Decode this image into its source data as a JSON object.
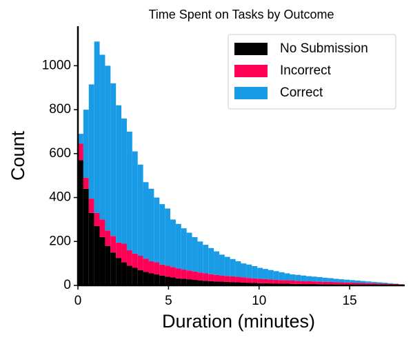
{
  "chart_data": {
    "type": "histogram",
    "title": "Time Spent on Tasks by Outcome",
    "xlabel": "Duration (minutes)",
    "ylabel": "Count",
    "bins": [
      0,
      0.3,
      0.6,
      0.9,
      1.2,
      1.5,
      1.8,
      2.1,
      2.4,
      2.7,
      3,
      3.3,
      3.6,
      3.9,
      4.2,
      4.5,
      4.8,
      5.1,
      5.4,
      5.7,
      6,
      6.3,
      6.6,
      6.9,
      7.2,
      7.5,
      7.8,
      8.1,
      8.4,
      8.7,
      9,
      9.3,
      9.6,
      9.9,
      10.2,
      10.5,
      10.8,
      11.1,
      11.4,
      11.7,
      12,
      12.3,
      12.6,
      12.9,
      13.2,
      13.5,
      13.8,
      14.1,
      14.4,
      14.7,
      15,
      15.3,
      15.6,
      15.9,
      16.2,
      16.5,
      16.8,
      17.1,
      17.4,
      17.7,
      18
    ],
    "stacked": true,
    "series": [
      {
        "name": "No Submission",
        "color": "#000000",
        "values": [
          570,
          440,
          330,
          270,
          220,
          180,
          150,
          125,
          105,
          90,
          80,
          70,
          62,
          55,
          50,
          45,
          40,
          36,
          32,
          30,
          28,
          25,
          23,
          21,
          19,
          18,
          17,
          16,
          15,
          14,
          13,
          12,
          11,
          10,
          10,
          9,
          9,
          8,
          8,
          7,
          7,
          6,
          6,
          6,
          5,
          5,
          5,
          4,
          4,
          4,
          4,
          3,
          3,
          3,
          3,
          2,
          2,
          2,
          2,
          1
        ]
      },
      {
        "name": "Incorrect",
        "color": "#ff0055",
        "values": [
          75,
          50,
          65,
          60,
          80,
          70,
          75,
          70,
          85,
          70,
          65,
          65,
          60,
          55,
          55,
          50,
          50,
          48,
          45,
          42,
          40,
          38,
          36,
          34,
          32,
          30,
          28,
          27,
          26,
          25,
          24,
          22,
          21,
          20,
          19,
          18,
          17,
          16,
          16,
          15,
          14,
          13,
          13,
          12,
          12,
          11,
          11,
          10,
          10,
          9,
          9,
          8,
          8,
          7,
          7,
          6,
          6,
          5,
          5,
          4
        ]
      },
      {
        "name": "Correct",
        "color": "#1a9be6",
        "values": [
          45,
          310,
          520,
          780,
          750,
          750,
          695,
          625,
          570,
          540,
          465,
          415,
          348,
          330,
          295,
          275,
          260,
          216,
          203,
          188,
          172,
          157,
          141,
          130,
          119,
          107,
          95,
          87,
          79,
          71,
          63,
          61,
          56,
          50,
          46,
          43,
          39,
          36,
          31,
          28,
          27,
          26,
          23,
          22,
          21,
          19,
          17,
          16,
          14,
          13,
          11,
          11,
          9,
          8,
          6,
          6,
          4,
          3,
          1,
          0
        ]
      }
    ],
    "xlim": [
      0,
      18
    ],
    "ylim": [
      0,
      1180
    ],
    "xticks": [
      0,
      5,
      10,
      15
    ],
    "yticks": [
      0,
      200,
      400,
      600,
      800,
      1000
    ],
    "legend": "upper right"
  }
}
